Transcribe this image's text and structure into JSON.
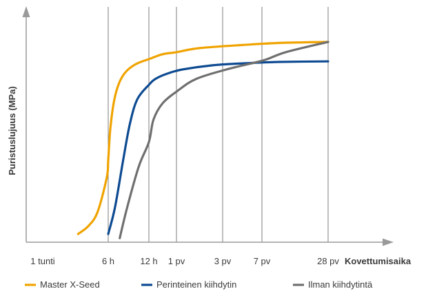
{
  "chart_data": {
    "type": "line",
    "title": "",
    "ylabel": "Puristuslujuus (MPa)",
    "xlabel": "Kovettumisaika",
    "x_ticks": [
      "1 tunti",
      "6 h",
      "12 h",
      "1 pv",
      "3 pv",
      "7 pv",
      "28 pv"
    ],
    "x_tick_positions": [
      1,
      6,
      12,
      24,
      72,
      168,
      672
    ],
    "y_tick_labels": false,
    "grid": "vertical lines at x ticks",
    "legend": "bottom",
    "series": [
      {
        "name": "Master X-Seed",
        "color": "#F0A300",
        "points": [
          [
            3.7,
            4
          ],
          [
            4.5,
            8
          ],
          [
            5.2,
            15
          ],
          [
            5.9,
            32
          ],
          [
            6.0,
            40
          ],
          [
            6.3,
            55
          ],
          [
            6.8,
            68
          ],
          [
            7.5,
            77
          ],
          [
            8.5,
            83
          ],
          [
            10,
            87
          ],
          [
            13,
            90
          ],
          [
            18,
            92
          ],
          [
            24,
            93
          ],
          [
            48,
            95
          ],
          [
            120,
            96.5
          ],
          [
            300,
            97.5
          ],
          [
            672,
            98
          ]
        ]
      },
      {
        "name": "Perinteinen kiihdytin",
        "color": "#0D4A91",
        "points": [
          [
            6.0,
            4
          ],
          [
            7.0,
            17
          ],
          [
            8.2,
            40
          ],
          [
            9.2,
            58
          ],
          [
            10.3,
            70
          ],
          [
            12,
            77
          ],
          [
            15,
            80
          ],
          [
            20,
            82.5
          ],
          [
            30,
            84.5
          ],
          [
            60,
            86.5
          ],
          [
            120,
            87.5
          ],
          [
            300,
            88.2
          ],
          [
            672,
            88.5
          ]
        ]
      },
      {
        "name": "Ilman kiihdytintä",
        "color": "#6F6F6F",
        "points": [
          [
            7.7,
            2
          ],
          [
            8.8,
            17
          ],
          [
            10.5,
            37
          ],
          [
            12,
            49
          ],
          [
            14,
            60
          ],
          [
            18,
            68
          ],
          [
            25,
            74
          ],
          [
            45,
            80
          ],
          [
            90,
            85
          ],
          [
            180,
            89
          ],
          [
            350,
            93
          ],
          [
            672,
            98
          ]
        ]
      }
    ]
  }
}
